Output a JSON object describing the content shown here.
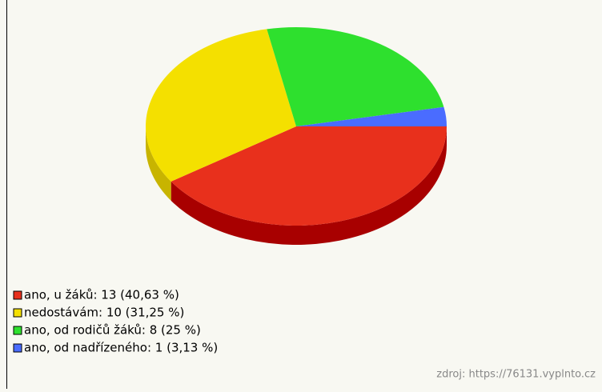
{
  "chart_data": {
    "type": "pie",
    "categories": [
      "ano, u žáků: 13 (40,63 %)",
      "nedostávám: 10 (31,25 %)",
      "ano, od rodičů žáků: 8 (25 %)",
      "ano, od nadřízeného: 1 (3,13 %)"
    ],
    "values": [
      13,
      10,
      8,
      1
    ],
    "colors": [
      "#e8301c",
      "#f4e000",
      "#2ee02e",
      "#4a6cff"
    ],
    "side_colors": [
      "#a80000",
      "#c8b400",
      "#1aa81a",
      "#2a40c0"
    ],
    "source": "zdroj: https://76131.vyplnto.cz"
  }
}
